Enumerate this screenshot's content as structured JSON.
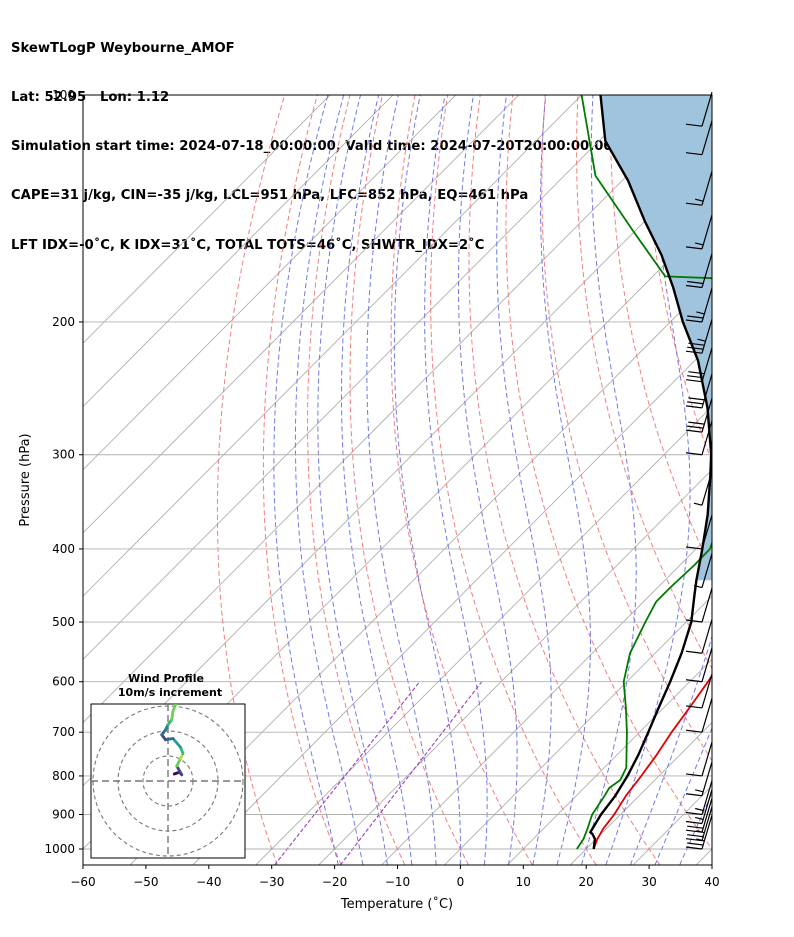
{
  "header": {
    "line1": "SkewTLogP Weybourne_AMOF",
    "line2": "Lat: 52.95   Lon: 1.12",
    "line3": "Simulation start time: 2024-07-18_00:00:00, Valid time: 2024-07-20T20:00:00.00",
    "line4": "CAPE=31 j/kg, CIN=-35 j/kg, LCL=951 hPa, LFC=852 hPa, EQ=461 hPa",
    "line5": "LFT IDX=-0˚C, K IDX=31˚C, TOTAL TOTS=46˚C, SHWTR_IDX=2˚C"
  },
  "chart_data": {
    "type": "skew-t log-p",
    "xlabel": "Temperature (˚C)",
    "ylabel": "Pressure (hPa)",
    "xlim": [
      -60,
      40
    ],
    "ylim": [
      1050,
      100
    ],
    "x_ticks": [
      -60,
      -50,
      -40,
      -30,
      -20,
      -10,
      0,
      10,
      20,
      30,
      40
    ],
    "y_ticks": [
      1000,
      900,
      800,
      700,
      600,
      500,
      400,
      300,
      200,
      100
    ],
    "grid": true,
    "colors": {
      "temperature": "#e00000",
      "dewpoint": "#007a00",
      "parcel": "#000000",
      "cape_fill": "#a0c4de",
      "dry_adiabats": "#f07070",
      "moist_adiabats": "#6a72e6",
      "mixing_ratio": "#9b3fbf",
      "isotherms": "#b0b0b0"
    },
    "series": [
      {
        "name": "Temperature",
        "points": [
          [
            21.2,
            1000
          ],
          [
            20.2,
            970
          ],
          [
            19.5,
            940
          ],
          [
            19.0,
            900
          ],
          [
            17.9,
            850
          ],
          [
            17.2,
            800
          ],
          [
            16.3,
            750
          ],
          [
            15.1,
            700
          ],
          [
            14.1,
            650
          ],
          [
            12.9,
            600
          ],
          [
            11.3,
            550
          ],
          [
            9.4,
            500
          ],
          [
            7.7,
            450
          ],
          [
            6.1,
            420
          ],
          [
            5.2,
            400
          ],
          [
            3.9,
            380
          ],
          [
            2.3,
            350
          ],
          [
            -1.5,
            320
          ],
          [
            -7.5,
            290
          ],
          [
            -12.5,
            270
          ],
          [
            -17.5,
            250
          ],
          [
            -22.5,
            230
          ],
          [
            -26.5,
            210
          ],
          [
            -29.5,
            195
          ],
          [
            -33.5,
            180
          ],
          [
            -38.5,
            165
          ],
          [
            -44.5,
            148
          ],
          [
            -50.0,
            130
          ],
          [
            -55.0,
            115
          ],
          [
            -59.5,
            100
          ]
        ]
      },
      {
        "name": "Dewpoint",
        "points": [
          [
            18.5,
            1000
          ],
          [
            18.0,
            970
          ],
          [
            17.0,
            940
          ],
          [
            15.5,
            900
          ],
          [
            14.5,
            850
          ],
          [
            14.0,
            830
          ],
          [
            14.5,
            810
          ],
          [
            13.5,
            780
          ],
          [
            11.5,
            750
          ],
          [
            8.0,
            700
          ],
          [
            4.0,
            650
          ],
          [
            -0.5,
            600
          ],
          [
            -4.0,
            550
          ],
          [
            -6.5,
            500
          ],
          [
            -8.0,
            470
          ],
          [
            -8.0,
            450
          ],
          [
            -7.7,
            420
          ],
          [
            -7.8,
            400
          ],
          [
            -9.5,
            380
          ],
          [
            -13.5,
            350
          ],
          [
            -18.5,
            320
          ],
          [
            -21.5,
            300
          ],
          [
            -23.5,
            285
          ],
          [
            -24.5,
            270
          ],
          [
            -25.0,
            250
          ],
          [
            -25.0,
            230
          ],
          [
            -27.0,
            220
          ],
          [
            -30.0,
            205
          ],
          [
            -33.0,
            195
          ],
          [
            -37.5,
            185
          ],
          [
            -42.0,
            176
          ],
          [
            -58.0,
            174
          ],
          [
            -70.0,
            152
          ],
          [
            -85.0,
            128
          ],
          [
            -100.0,
            100
          ]
        ]
      },
      {
        "name": "Parcel",
        "points": [
          [
            21.2,
            1000
          ],
          [
            19.8,
            970
          ],
          [
            18.6,
            955
          ],
          [
            18.0,
            950
          ],
          [
            16.9,
            900
          ],
          [
            16.2,
            850
          ],
          [
            15.0,
            800
          ],
          [
            13.4,
            750
          ],
          [
            11.4,
            700
          ],
          [
            9.2,
            650
          ],
          [
            6.9,
            600
          ],
          [
            4.2,
            550
          ],
          [
            0.8,
            500
          ],
          [
            -3.0,
            460
          ],
          [
            -5.0,
            440
          ],
          [
            -9.0,
            400
          ],
          [
            -13.6,
            360
          ],
          [
            -19.3,
            320
          ],
          [
            -22.5,
            300
          ],
          [
            -30.5,
            260
          ],
          [
            -39.5,
            225
          ],
          [
            -48.0,
            200
          ],
          [
            -55.0,
            180
          ],
          [
            -62.0,
            163
          ],
          [
            -70.0,
            147
          ],
          [
            -79.0,
            130
          ],
          [
            -89.0,
            115
          ],
          [
            -97.0,
            100
          ]
        ]
      }
    ],
    "wind_barbs": [
      {
        "p": 1000,
        "speed_kt": 25
      },
      {
        "p": 975,
        "speed_kt": 25
      },
      {
        "p": 950,
        "speed_kt": 20
      },
      {
        "p": 925,
        "speed_kt": 15
      },
      {
        "p": 900,
        "speed_kt": 15
      },
      {
        "p": 850,
        "speed_kt": 15
      },
      {
        "p": 800,
        "speed_kt": 10
      },
      {
        "p": 700,
        "speed_kt": 10
      },
      {
        "p": 650,
        "speed_kt": 10
      },
      {
        "p": 600,
        "speed_kt": 10
      },
      {
        "p": 550,
        "speed_kt": 10
      },
      {
        "p": 500,
        "speed_kt": 10
      },
      {
        "p": 450,
        "speed_kt": 5
      },
      {
        "p": 400,
        "speed_kt": 10
      },
      {
        "p": 350,
        "speed_kt": 5
      },
      {
        "p": 300,
        "speed_kt": 10
      },
      {
        "p": 280,
        "speed_kt": 30
      },
      {
        "p": 260,
        "speed_kt": 30
      },
      {
        "p": 240,
        "speed_kt": 30
      },
      {
        "p": 220,
        "speed_kt": 35
      },
      {
        "p": 200,
        "speed_kt": 25
      },
      {
        "p": 180,
        "speed_kt": 20
      },
      {
        "p": 160,
        "speed_kt": 15
      },
      {
        "p": 140,
        "speed_kt": 15
      },
      {
        "p": 120,
        "speed_kt": 10
      },
      {
        "p": 110,
        "speed_kt": 10
      }
    ],
    "hodograph": {
      "title": "Wind Profile",
      "subtitle": "10m/s increment",
      "rings_ms": [
        10,
        20,
        30
      ],
      "points": [
        [
          2.5,
          2.8
        ],
        [
          4.5,
          3.5
        ],
        [
          5.5,
          2.5
        ],
        [
          3.5,
          6.0
        ],
        [
          5.0,
          9.0
        ],
        [
          6.0,
          11.0
        ],
        [
          5.0,
          13.5
        ],
        [
          2.0,
          17.0
        ],
        [
          -1.0,
          16.5
        ],
        [
          -2.5,
          18.5
        ],
        [
          -1.0,
          20.5
        ],
        [
          0.0,
          22.5
        ],
        [
          1.5,
          24.5
        ],
        [
          2.0,
          28.0
        ],
        [
          3.0,
          30.5
        ]
      ]
    }
  }
}
